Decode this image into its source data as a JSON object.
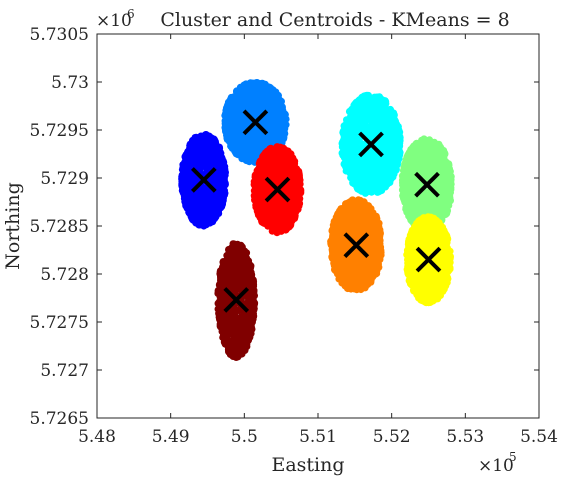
{
  "chart_data": {
    "type": "scatter",
    "title": "Cluster and Centroids - KMeans = 8",
    "xlabel": "Easting",
    "ylabel": "Northing",
    "x_scale_label": {
      "base": "×10",
      "exponent": "5"
    },
    "y_scale_label": {
      "base": "×10",
      "exponent": "6"
    },
    "xlim": [
      5.48,
      5.54
    ],
    "ylim": [
      5.7265,
      5.7305
    ],
    "x_ticks": [
      "5.48",
      "5.49",
      "5.5",
      "5.51",
      "5.52",
      "5.53",
      "5.54"
    ],
    "y_ticks": [
      "5.7265",
      "5.727",
      "5.7275",
      "5.728",
      "5.7285",
      "5.729",
      "5.7295",
      "5.73",
      "5.7305"
    ],
    "grid": false,
    "legend": "none",
    "centroid_marker": "x",
    "centroid_color": "#000000",
    "series": [
      {
        "color": "#0000ff",
        "centroid": [
          5.4945,
          5.72898
        ],
        "spread": [
          0.003,
          0.00048
        ],
        "tilt": -0.05,
        "points": 900
      },
      {
        "color": "#0080ff",
        "centroid": [
          5.5015,
          5.72958
        ],
        "spread": [
          0.0042,
          0.00042
        ],
        "tilt": 0.0,
        "points": 900
      },
      {
        "color": "#00ffff",
        "centroid": [
          5.5172,
          5.72935
        ],
        "spread": [
          0.004,
          0.00052
        ],
        "tilt": 0.0,
        "points": 900
      },
      {
        "color": "#ff0000",
        "centroid": [
          5.5045,
          5.72888
        ],
        "spread": [
          0.0032,
          0.00045
        ],
        "tilt": 0.0,
        "points": 900
      },
      {
        "color": "#80ff80",
        "centroid": [
          5.5248,
          5.72893
        ],
        "spread": [
          0.0034,
          0.00048
        ],
        "tilt": 0.0,
        "points": 900
      },
      {
        "color": "#ff8000",
        "centroid": [
          5.5152,
          5.7283
        ],
        "spread": [
          0.0035,
          0.00048
        ],
        "tilt": 0.0,
        "points": 900
      },
      {
        "color": "#ffff00",
        "centroid": [
          5.525,
          5.72815
        ],
        "spread": [
          0.003,
          0.00045
        ],
        "tilt": 0.0,
        "points": 900
      },
      {
        "color": "#800000",
        "centroid": [
          5.4989,
          5.72773
        ],
        "spread": [
          0.0025,
          0.0006
        ],
        "tilt": 0.0,
        "points": 700
      }
    ]
  }
}
